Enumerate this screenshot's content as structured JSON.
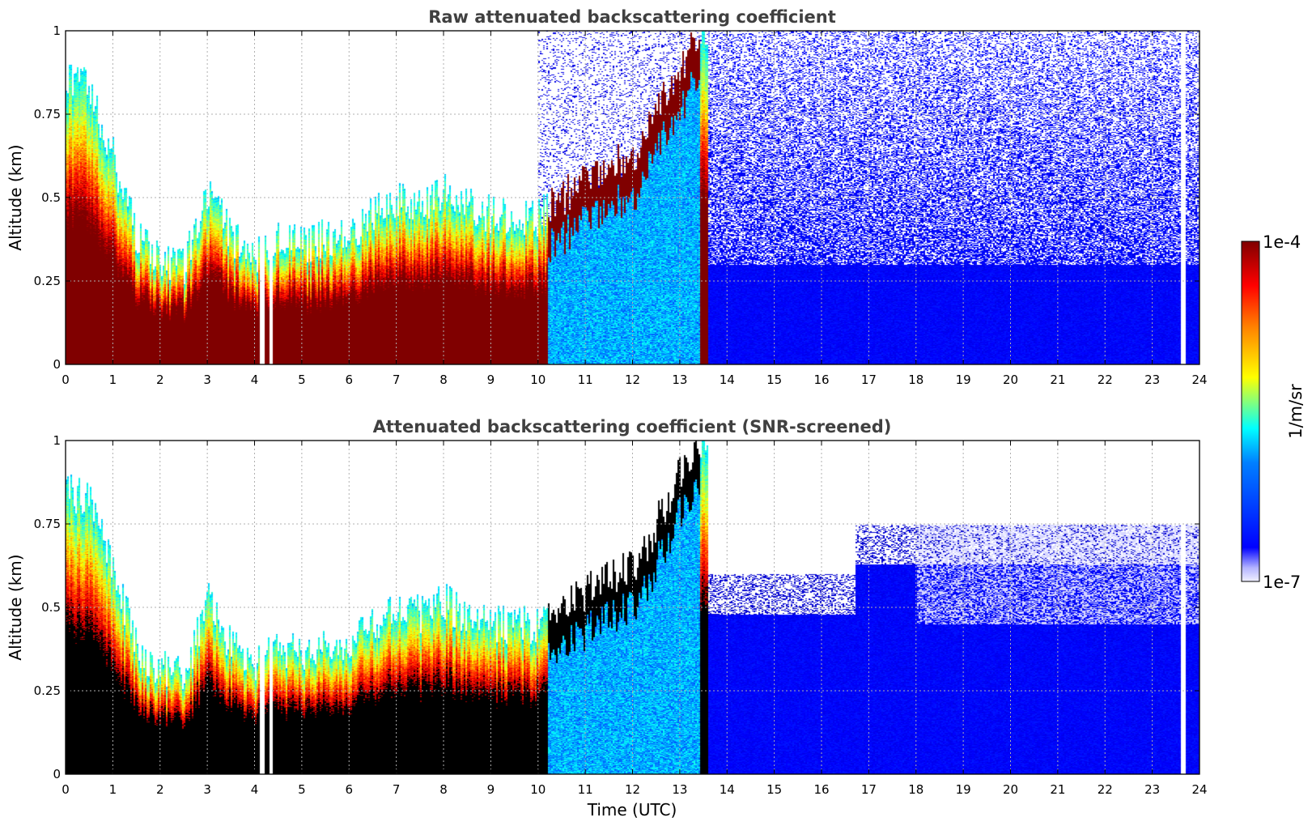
{
  "chart_data": [
    {
      "type": "heatmap",
      "title": "Raw attenuated backscattering coefficient",
      "xlabel": "",
      "ylabel": "Altitude (km)",
      "xlim": [
        0,
        24
      ],
      "ylim": [
        0,
        1
      ],
      "xticks": [
        "0",
        "1",
        "2",
        "3",
        "4",
        "5",
        "6",
        "7",
        "8",
        "9",
        "10",
        "11",
        "12",
        "13",
        "14",
        "15",
        "16",
        "17",
        "18",
        "19",
        "20",
        "21",
        "22",
        "23",
        "24"
      ],
      "yticks": [
        "0",
        "0.25",
        "0.5",
        "0.75",
        "1"
      ],
      "grid": true,
      "screened": false
    },
    {
      "type": "heatmap",
      "title": "Attenuated backscattering coefficient (SNR-screened)",
      "xlabel": "Time (UTC)",
      "ylabel": "Altitude (km)",
      "xlim": [
        0,
        24
      ],
      "ylim": [
        0,
        1
      ],
      "xticks": [
        "0",
        "1",
        "2",
        "3",
        "4",
        "5",
        "6",
        "7",
        "8",
        "9",
        "10",
        "11",
        "12",
        "13",
        "14",
        "15",
        "16",
        "17",
        "18",
        "19",
        "20",
        "21",
        "22",
        "23",
        "24"
      ],
      "yticks": [
        "0",
        "0.25",
        "0.5",
        "0.75",
        "1"
      ],
      "grid": true,
      "screened": true
    }
  ],
  "colorbar": {
    "label": "1/m/sr",
    "max_label": "1e-4",
    "min_label": "1e-7",
    "scale": "log",
    "colormap": "jet"
  },
  "layer_profile": {
    "description_points_time": [
      0,
      0.5,
      1,
      1.5,
      2,
      2.5,
      3,
      3.5,
      4,
      4.5,
      5,
      5.5,
      6,
      6.5,
      7,
      7.5,
      8,
      8.5,
      9,
      9.5,
      10,
      10.5,
      11,
      11.5,
      12,
      12.5,
      13,
      13.5
    ],
    "top_km": [
      0.85,
      0.83,
      0.62,
      0.38,
      0.32,
      0.3,
      0.52,
      0.38,
      0.32,
      0.38,
      0.36,
      0.38,
      0.4,
      0.45,
      0.5,
      0.48,
      0.52,
      0.47,
      0.45,
      0.45,
      0.44,
      0.5,
      0.55,
      0.6,
      0.62,
      0.75,
      0.9,
      1.0
    ]
  }
}
